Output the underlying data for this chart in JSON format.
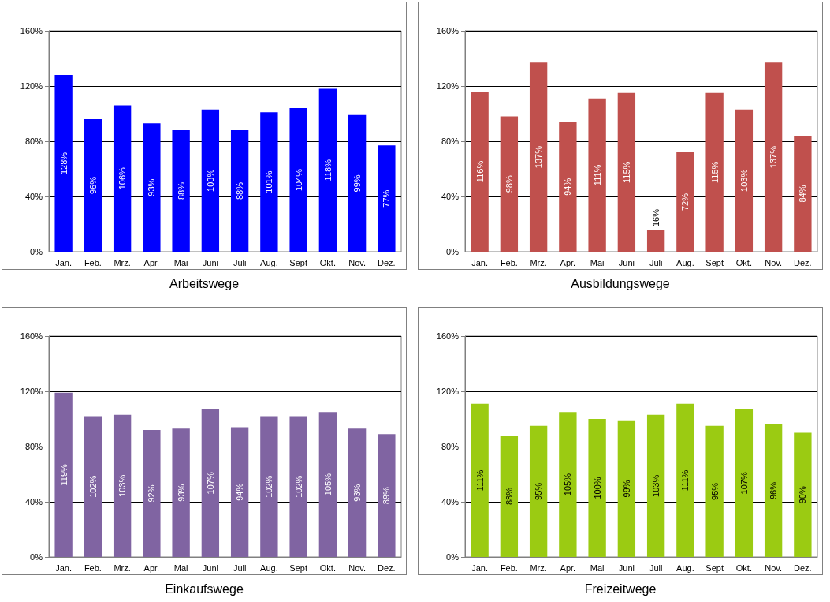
{
  "chart_data": [
    {
      "type": "bar",
      "title": "Arbeitswege",
      "categories": [
        "Jan.",
        "Feb.",
        "Mrz.",
        "Apr.",
        "Mai",
        "Juni",
        "Juli",
        "Aug.",
        "Sept",
        "Okt.",
        "Nov.",
        "Dez."
      ],
      "values": [
        128,
        96,
        106,
        93,
        88,
        103,
        88,
        101,
        104,
        118,
        99,
        77
      ],
      "value_labels": [
        "128%",
        "96%",
        "106%",
        "93%",
        "88%",
        "103%",
        "88%",
        "101%",
        "104%",
        "118%",
        "99%",
        "77%"
      ],
      "color": "#0000ff",
      "ylim": [
        0,
        160
      ],
      "yticks": [
        {
          "value": 0,
          "label": "0%"
        },
        {
          "value": 40,
          "label": "40%"
        },
        {
          "value": 80,
          "label": "80%"
        },
        {
          "value": 120,
          "label": "120%"
        },
        {
          "value": 160,
          "label": "160%"
        }
      ],
      "grid": "y"
    },
    {
      "type": "bar",
      "title": "Ausbildungswege",
      "categories": [
        "Jan.",
        "Feb.",
        "Mrz.",
        "Apr.",
        "Mai",
        "Juni",
        "Juli",
        "Aug.",
        "Sept",
        "Okt.",
        "Nov.",
        "Dez."
      ],
      "values": [
        116,
        98,
        137,
        94,
        111,
        115,
        16,
        72,
        115,
        103,
        137,
        84
      ],
      "value_labels": [
        "116%",
        "98%",
        "137%",
        "94%",
        "111%",
        "115%",
        "16%",
        "72%",
        "115%",
        "103%",
        "137%",
        "84%"
      ],
      "color": "#c0504d",
      "ylim": [
        0,
        160
      ],
      "yticks": [
        {
          "value": 0,
          "label": "0%"
        },
        {
          "value": 40,
          "label": "40%"
        },
        {
          "value": 80,
          "label": "80%"
        },
        {
          "value": 120,
          "label": "120%"
        },
        {
          "value": 160,
          "label": "160%"
        }
      ],
      "grid": "y"
    },
    {
      "type": "bar",
      "title": "Einkaufswege",
      "categories": [
        "Jan.",
        "Feb.",
        "Mrz.",
        "Apr.",
        "Mai",
        "Juni",
        "Juli",
        "Aug.",
        "Sept",
        "Okt.",
        "Nov.",
        "Dez."
      ],
      "values": [
        119,
        102,
        103,
        92,
        93,
        107,
        94,
        102,
        102,
        105,
        93,
        89
      ],
      "value_labels": [
        "119%",
        "102%",
        "103%",
        "92%",
        "93%",
        "107%",
        "94%",
        "102%",
        "102%",
        "105%",
        "93%",
        "89%"
      ],
      "color": "#8064a2",
      "ylim": [
        0,
        160
      ],
      "yticks": [
        {
          "value": 0,
          "label": "0%"
        },
        {
          "value": 40,
          "label": "40%"
        },
        {
          "value": 80,
          "label": "80%"
        },
        {
          "value": 120,
          "label": "120%"
        },
        {
          "value": 160,
          "label": "160%"
        }
      ],
      "grid": "y"
    },
    {
      "type": "bar",
      "title": "Freizeitwege",
      "categories": [
        "Jan.",
        "Feb.",
        "Mrz.",
        "Apr.",
        "Mai",
        "Juni",
        "Juli",
        "Aug.",
        "Sept",
        "Okt.",
        "Nov.",
        "Dez."
      ],
      "values": [
        111,
        88,
        95,
        105,
        100,
        99,
        103,
        111,
        95,
        107,
        96,
        90
      ],
      "value_labels": [
        "111%",
        "88%",
        "95%",
        "105%",
        "100%",
        "99%",
        "103%",
        "111%",
        "95%",
        "107%",
        "96%",
        "90%"
      ],
      "color": "#9bcb12",
      "ylim": [
        0,
        160
      ],
      "yticks": [
        {
          "value": 0,
          "label": "0%"
        },
        {
          "value": 40,
          "label": "40%"
        },
        {
          "value": 80,
          "label": "80%"
        },
        {
          "value": 120,
          "label": "120%"
        },
        {
          "value": 160,
          "label": "160%"
        }
      ],
      "grid": "y"
    }
  ]
}
